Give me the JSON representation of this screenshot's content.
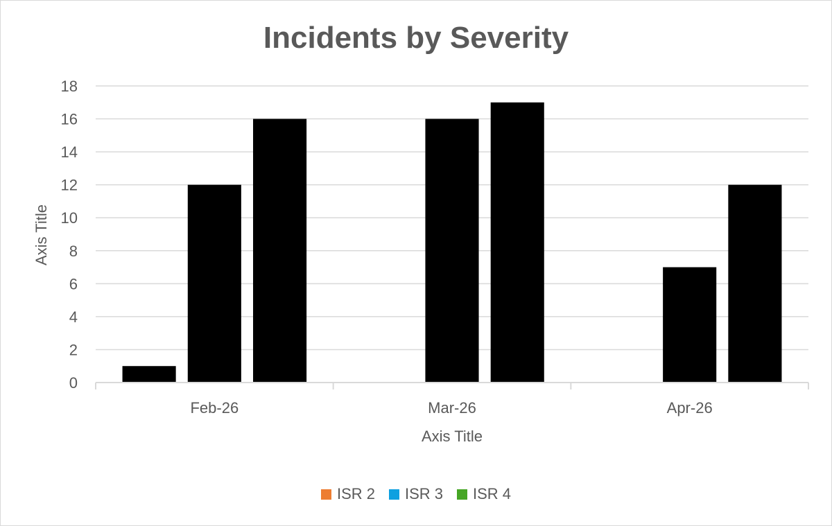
{
  "chart_data": {
    "type": "bar",
    "title": "Incidents by Severity",
    "xlabel": "Axis Title",
    "ylabel": "Axis Title",
    "categories": [
      "Feb-26",
      "Mar-26",
      "Apr-26"
    ],
    "series": [
      {
        "name": "ISR 2",
        "color": "#ed7d31",
        "values": [
          1,
          0,
          0
        ]
      },
      {
        "name": "ISR 3",
        "color": "#0ea0e0",
        "values": [
          12,
          16,
          7
        ]
      },
      {
        "name": "ISR 4",
        "color": "#46a625",
        "values": [
          16,
          17,
          12
        ]
      }
    ],
    "ylim": [
      0,
      18
    ],
    "yticks": [
      0,
      2,
      4,
      6,
      8,
      10,
      12,
      14,
      16,
      18
    ],
    "grid": true,
    "legend_position": "bottom"
  }
}
